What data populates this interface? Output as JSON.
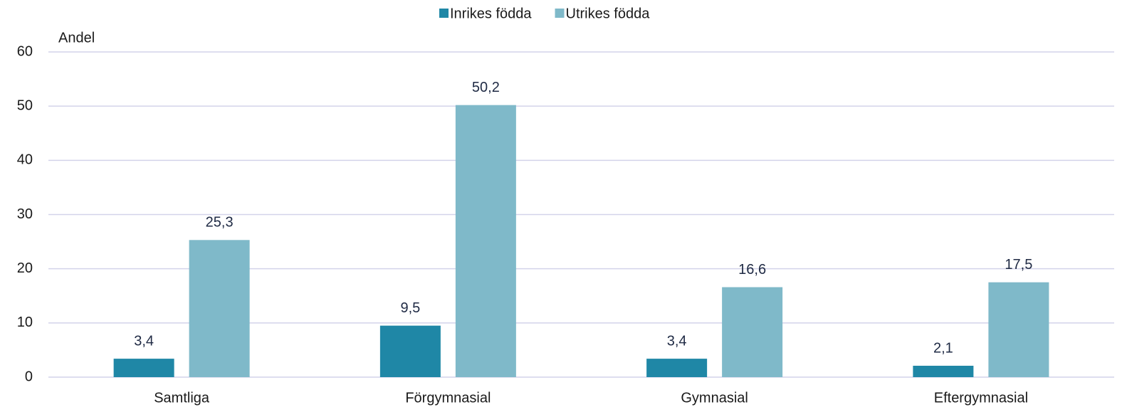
{
  "chart_data": {
    "type": "bar",
    "y_label": "Andel",
    "categories": [
      "Samtliga",
      "Förgymnasial",
      "Gymnasial",
      "Eftergymnasial"
    ],
    "series": [
      {
        "name": "Inrikes födda",
        "color": "#1f87a6",
        "values": [
          3.4,
          9.5,
          3.4,
          2.1
        ],
        "value_labels": [
          "3,4",
          "9,5",
          "3,4",
          "2,1"
        ]
      },
      {
        "name": "Utrikes födda",
        "color": "#7fb9c9",
        "values": [
          25.3,
          50.2,
          16.6,
          17.5
        ],
        "value_labels": [
          "25,3",
          "50,2",
          "16,6",
          "17,5"
        ]
      }
    ],
    "ylim": [
      0,
      60
    ],
    "yticks": [
      0,
      10,
      20,
      30,
      40,
      50,
      60
    ],
    "grid": true,
    "legend": "top"
  }
}
